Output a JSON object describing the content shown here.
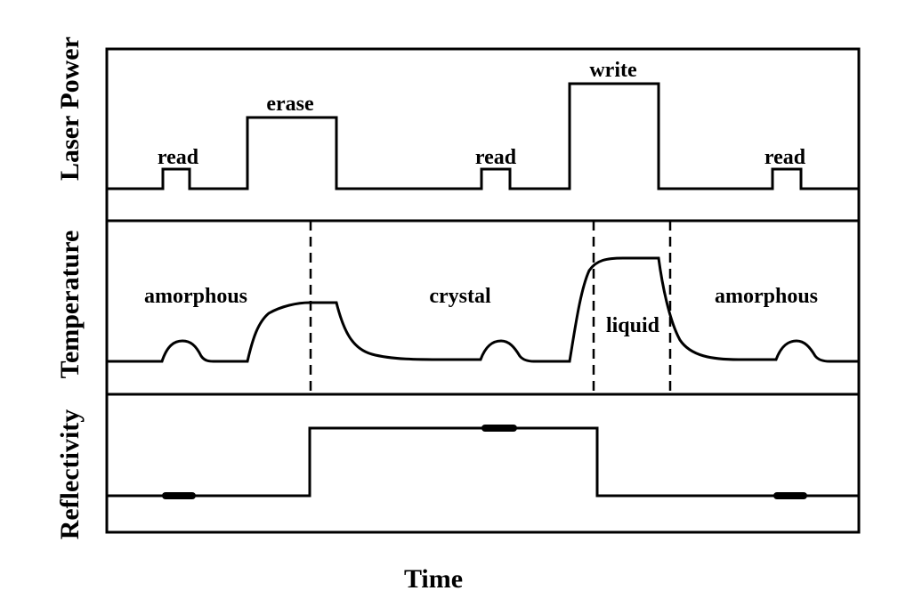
{
  "panels": {
    "laser_power": {
      "label": "Laser Power",
      "pulses": [
        "read",
        "erase",
        "read",
        "write",
        "read"
      ]
    },
    "temperature": {
      "label": "Temperature",
      "states": [
        "amorphous",
        "crystal",
        "liquid",
        "amorphous"
      ]
    },
    "reflectivity": {
      "label": "Reflectivity"
    }
  },
  "x_axis": {
    "label": "Time"
  }
}
